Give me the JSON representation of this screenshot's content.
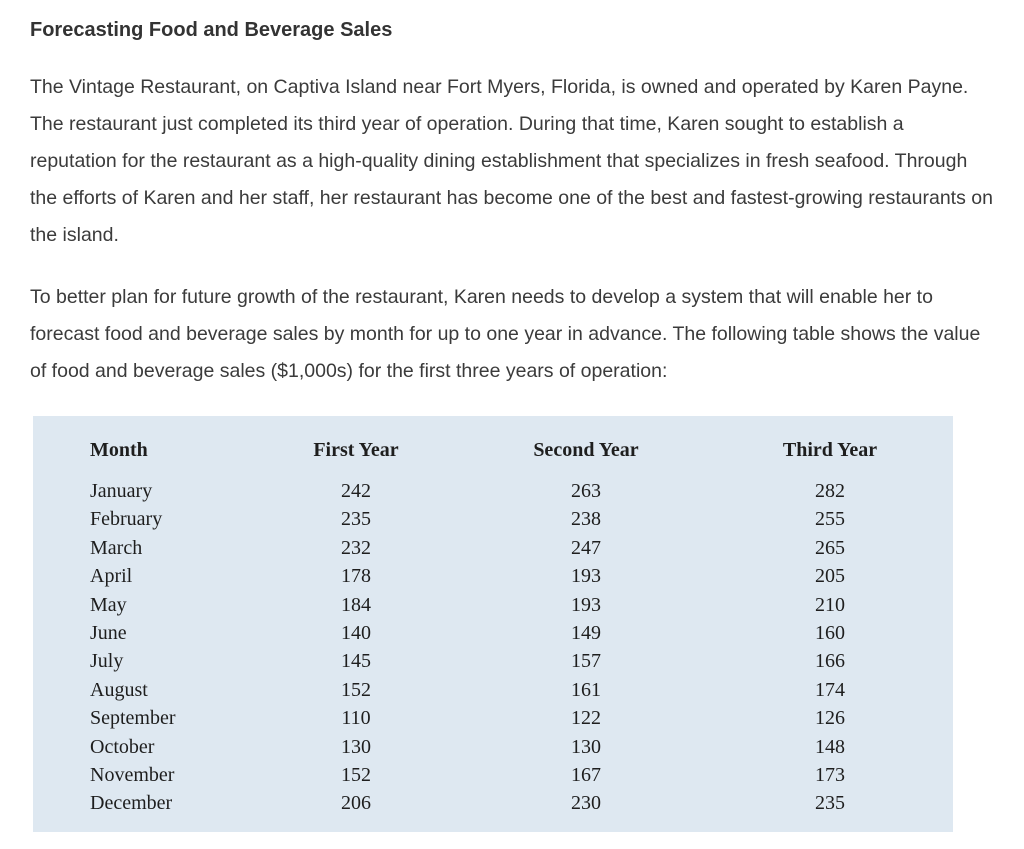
{
  "page": {
    "title": "Forecasting Food and Beverage Sales",
    "paragraphs": [
      "The Vintage Restaurant, on Captiva Island near Fort Myers, Florida, is owned and operated by Karen Payne. The restaurant just completed its third year of operation. During that time, Karen sought to establish a reputation for the restaurant as a high-quality dining establishment that specializes in fresh seafood. Through the efforts of Karen and her staff, her restaurant has become one of the best and fastest-growing restaurants on the island.",
      "To better plan for future growth of the restaurant, Karen needs to develop a system that will enable her to forecast food and beverage sales by month for up to one year in advance. The following table shows the value of food and beverage sales ($1,000s) for the first three years of operation:"
    ]
  },
  "table": {
    "panel_background": "#dee8f1",
    "units": "$1,000s",
    "columns": [
      "Month",
      "First Year",
      "Second Year",
      "Third Year"
    ],
    "row_keys": [
      "month",
      "first_year",
      "second_year",
      "third_year"
    ],
    "rows": [
      {
        "month": "January",
        "first_year": "242",
        "second_year": "263",
        "third_year": "282"
      },
      {
        "month": "February",
        "first_year": "235",
        "second_year": "238",
        "third_year": "255"
      },
      {
        "month": "March",
        "first_year": "232",
        "second_year": "247",
        "third_year": "265"
      },
      {
        "month": "April",
        "first_year": "178",
        "second_year": "193",
        "third_year": "205"
      },
      {
        "month": "May",
        "first_year": "184",
        "second_year": "193",
        "third_year": "210"
      },
      {
        "month": "June",
        "first_year": "140",
        "second_year": "149",
        "third_year": "160"
      },
      {
        "month": "July",
        "first_year": "145",
        "second_year": "157",
        "third_year": "166"
      },
      {
        "month": "August",
        "first_year": "152",
        "second_year": "161",
        "third_year": "174"
      },
      {
        "month": "September",
        "first_year": "110",
        "second_year": "122",
        "third_year": "126"
      },
      {
        "month": "October",
        "first_year": "130",
        "second_year": "130",
        "third_year": "148"
      },
      {
        "month": "November",
        "first_year": "152",
        "second_year": "167",
        "third_year": "173"
      },
      {
        "month": "December",
        "first_year": "206",
        "second_year": "230",
        "third_year": "235"
      }
    ]
  }
}
